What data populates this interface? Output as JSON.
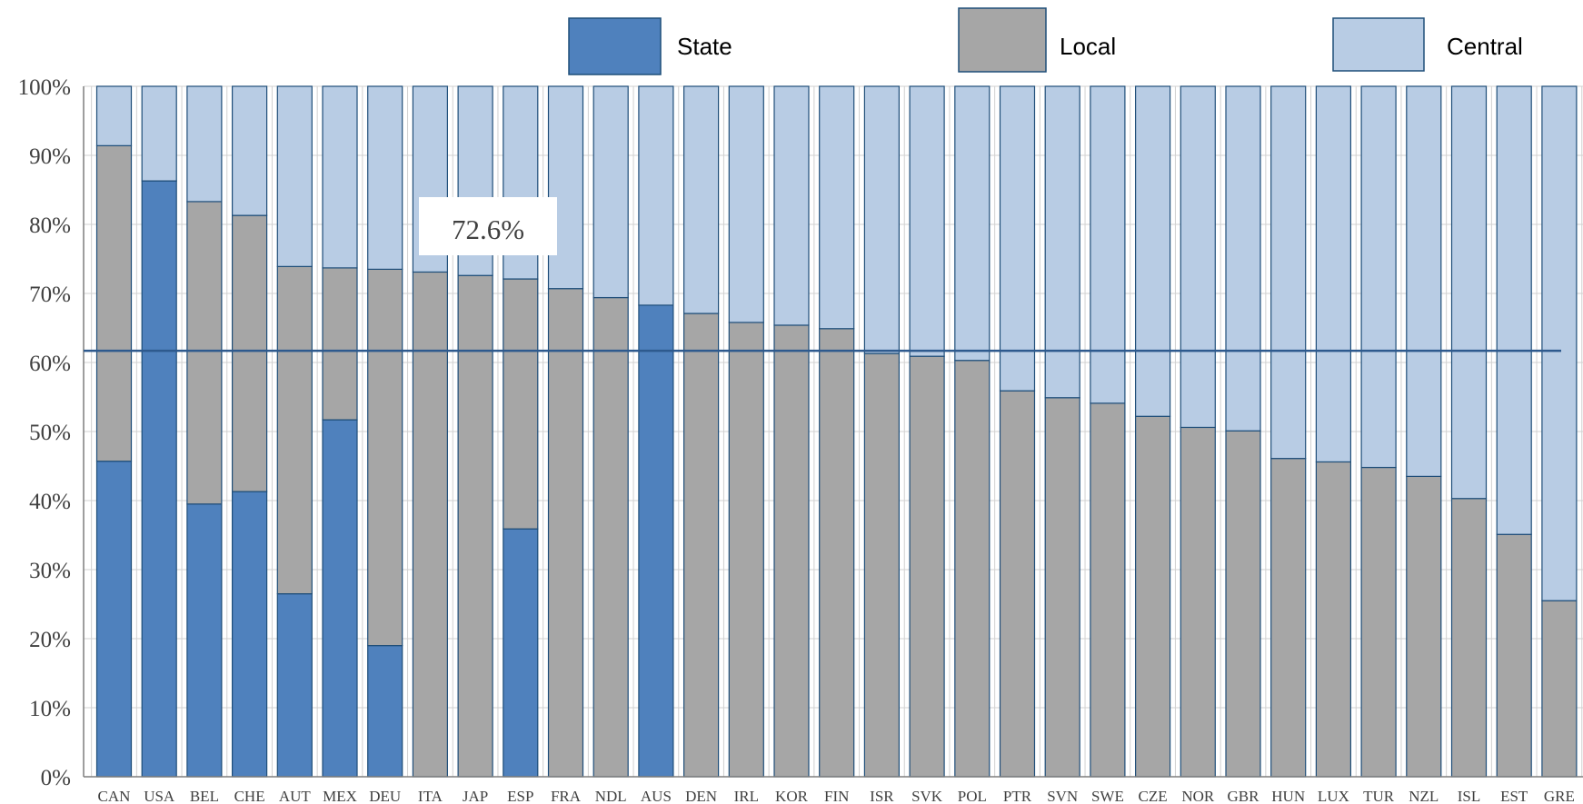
{
  "chart_data": {
    "type": "bar",
    "stacked": true,
    "categories": [
      "CAN",
      "USA",
      "BEL",
      "CHE",
      "AUT",
      "MEX",
      "DEU",
      "ITA",
      "JAP",
      "ESP",
      "FRA",
      "NDL",
      "AUS",
      "DEN",
      "IRL",
      "KOR",
      "FIN",
      "ISR",
      "SVK",
      "POL",
      "PTR",
      "SVN",
      "SWE",
      "CZE",
      "NOR",
      "GBR",
      "HUN",
      "LUX",
      "TUR",
      "NZL",
      "ISL",
      "EST",
      "GRE"
    ],
    "series": [
      {
        "name": "State",
        "color": "#4f81bd",
        "values": [
          45.7,
          86.3,
          39.5,
          41.3,
          26.5,
          51.7,
          19.0,
          0,
          0,
          35.9,
          0,
          0,
          68.3,
          0,
          0,
          0,
          0,
          0,
          0,
          0,
          0,
          0,
          0,
          0,
          0,
          0,
          0,
          0,
          0,
          0,
          0,
          0,
          0
        ]
      },
      {
        "name": "Local",
        "color": "#a6a6a6",
        "values": [
          45.7,
          0,
          43.8,
          40.0,
          47.4,
          22.0,
          54.5,
          73.1,
          72.6,
          36.2,
          70.7,
          69.4,
          0,
          67.1,
          65.8,
          65.4,
          64.9,
          61.3,
          60.9,
          60.3,
          55.9,
          54.9,
          54.1,
          52.2,
          50.6,
          50.1,
          46.1,
          45.6,
          44.8,
          43.5,
          40.3,
          35.1,
          25.5
        ]
      },
      {
        "name": "Central",
        "color": "#b8cce4",
        "values": [
          8.6,
          13.7,
          16.7,
          18.7,
          26.1,
          26.3,
          26.5,
          26.9,
          27.4,
          27.9,
          29.3,
          30.6,
          31.7,
          32.9,
          34.2,
          34.6,
          35.1,
          38.7,
          39.1,
          39.7,
          44.1,
          45.1,
          45.9,
          47.8,
          49.4,
          49.9,
          53.9,
          54.4,
          55.2,
          56.5,
          59.7,
          64.9,
          74.5
        ]
      }
    ],
    "ylim": [
      0,
      100
    ],
    "yticks": [
      "0%",
      "10%",
      "20%",
      "30%",
      "40%",
      "50%",
      "60%",
      "70%",
      "80%",
      "90%",
      "100%"
    ],
    "reference_line": 61.7,
    "annotation": "72.6%",
    "legend": "top",
    "grid": true
  }
}
